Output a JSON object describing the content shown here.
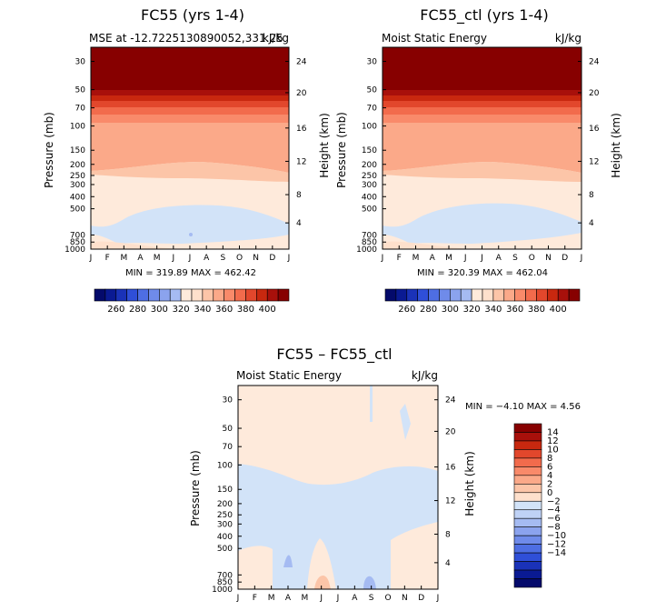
{
  "colors": {
    "positive": [
      "#FEE0CC",
      "#FCC5A8",
      "#FBA989",
      "#F98A6A",
      "#F26B4C",
      "#E2472C",
      "#C8280F",
      "#A8100B",
      "#870000"
    ],
    "negative": [
      "#D2E3F8",
      "#BFD2F6",
      "#A5BBF2",
      "#8BA3EE",
      "#6F8BEA",
      "#4E6EE3",
      "#2F4FD8",
      "#1A32B8",
      "#0A1A93",
      "#040A6B"
    ],
    "neutral": "#FEEADB"
  },
  "chart_data": [
    {
      "type": "contour",
      "title": "FC55 (yrs 1-4)",
      "subtitle_left": "MSE at -12.7225130890052,331.25",
      "subtitle_right": "kJ/kg",
      "xlabel": "",
      "ylabel": "Pressure (mb)",
      "ylabel_right": "Height (km)",
      "x_ticks": [
        "J",
        "F",
        "M",
        "A",
        "M",
        "J",
        "J",
        "A",
        "S",
        "O",
        "N",
        "D",
        "J"
      ],
      "pressure_ticks": [
        "30",
        "50",
        "70",
        "100",
        "150",
        "200",
        "250",
        "300",
        "400",
        "500",
        "700",
        "850",
        "1000"
      ],
      "height_ticks": [
        "24",
        "20",
        "16",
        "12",
        "8",
        "4"
      ],
      "min_label": "MIN = 319.89 MAX = 462.42",
      "colorbar_ticks": [
        "260",
        "280",
        "300",
        "320",
        "340",
        "360",
        "380",
        "400"
      ]
    },
    {
      "type": "contour",
      "title": "FC55_ctl (yrs 1-4)",
      "subtitle_left": "Moist Static Energy",
      "subtitle_right": "kJ/kg",
      "xlabel": "",
      "ylabel": "Pressure (mb)",
      "ylabel_right": "Height (km)",
      "x_ticks": [
        "J",
        "F",
        "M",
        "A",
        "M",
        "J",
        "J",
        "A",
        "S",
        "O",
        "N",
        "D",
        "J"
      ],
      "pressure_ticks": [
        "30",
        "50",
        "70",
        "100",
        "150",
        "200",
        "250",
        "300",
        "400",
        "500",
        "700",
        "850",
        "1000"
      ],
      "height_ticks": [
        "24",
        "20",
        "16",
        "12",
        "8",
        "4"
      ],
      "min_label": "MIN = 320.39 MAX = 462.04",
      "colorbar_ticks": [
        "260",
        "280",
        "300",
        "320",
        "340",
        "360",
        "380",
        "400"
      ]
    },
    {
      "type": "contour",
      "title": "FC55 – FC55_ctl",
      "subtitle_left": "Moist Static Energy",
      "subtitle_right": "kJ/kg",
      "xlabel": "",
      "ylabel": "Pressure (mb)",
      "ylabel_right": "Height (km)",
      "x_ticks": [
        "J",
        "F",
        "M",
        "A",
        "M",
        "J",
        "J",
        "A",
        "S",
        "O",
        "N",
        "D",
        "J"
      ],
      "pressure_ticks": [
        "30",
        "50",
        "70",
        "100",
        "150",
        "200",
        "250",
        "300",
        "400",
        "500",
        "700",
        "850",
        "1000"
      ],
      "height_ticks": [
        "24",
        "20",
        "16",
        "12",
        "8",
        "4"
      ],
      "min_label": "MIN =  −4.10 MAX =    4.56",
      "colorbar_ticks": [
        "14",
        "12",
        "10",
        "8",
        "6",
        "4",
        "2",
        "0",
        "−2",
        "−4",
        "−6",
        "−8",
        "−10",
        "−12",
        "−14"
      ]
    }
  ]
}
